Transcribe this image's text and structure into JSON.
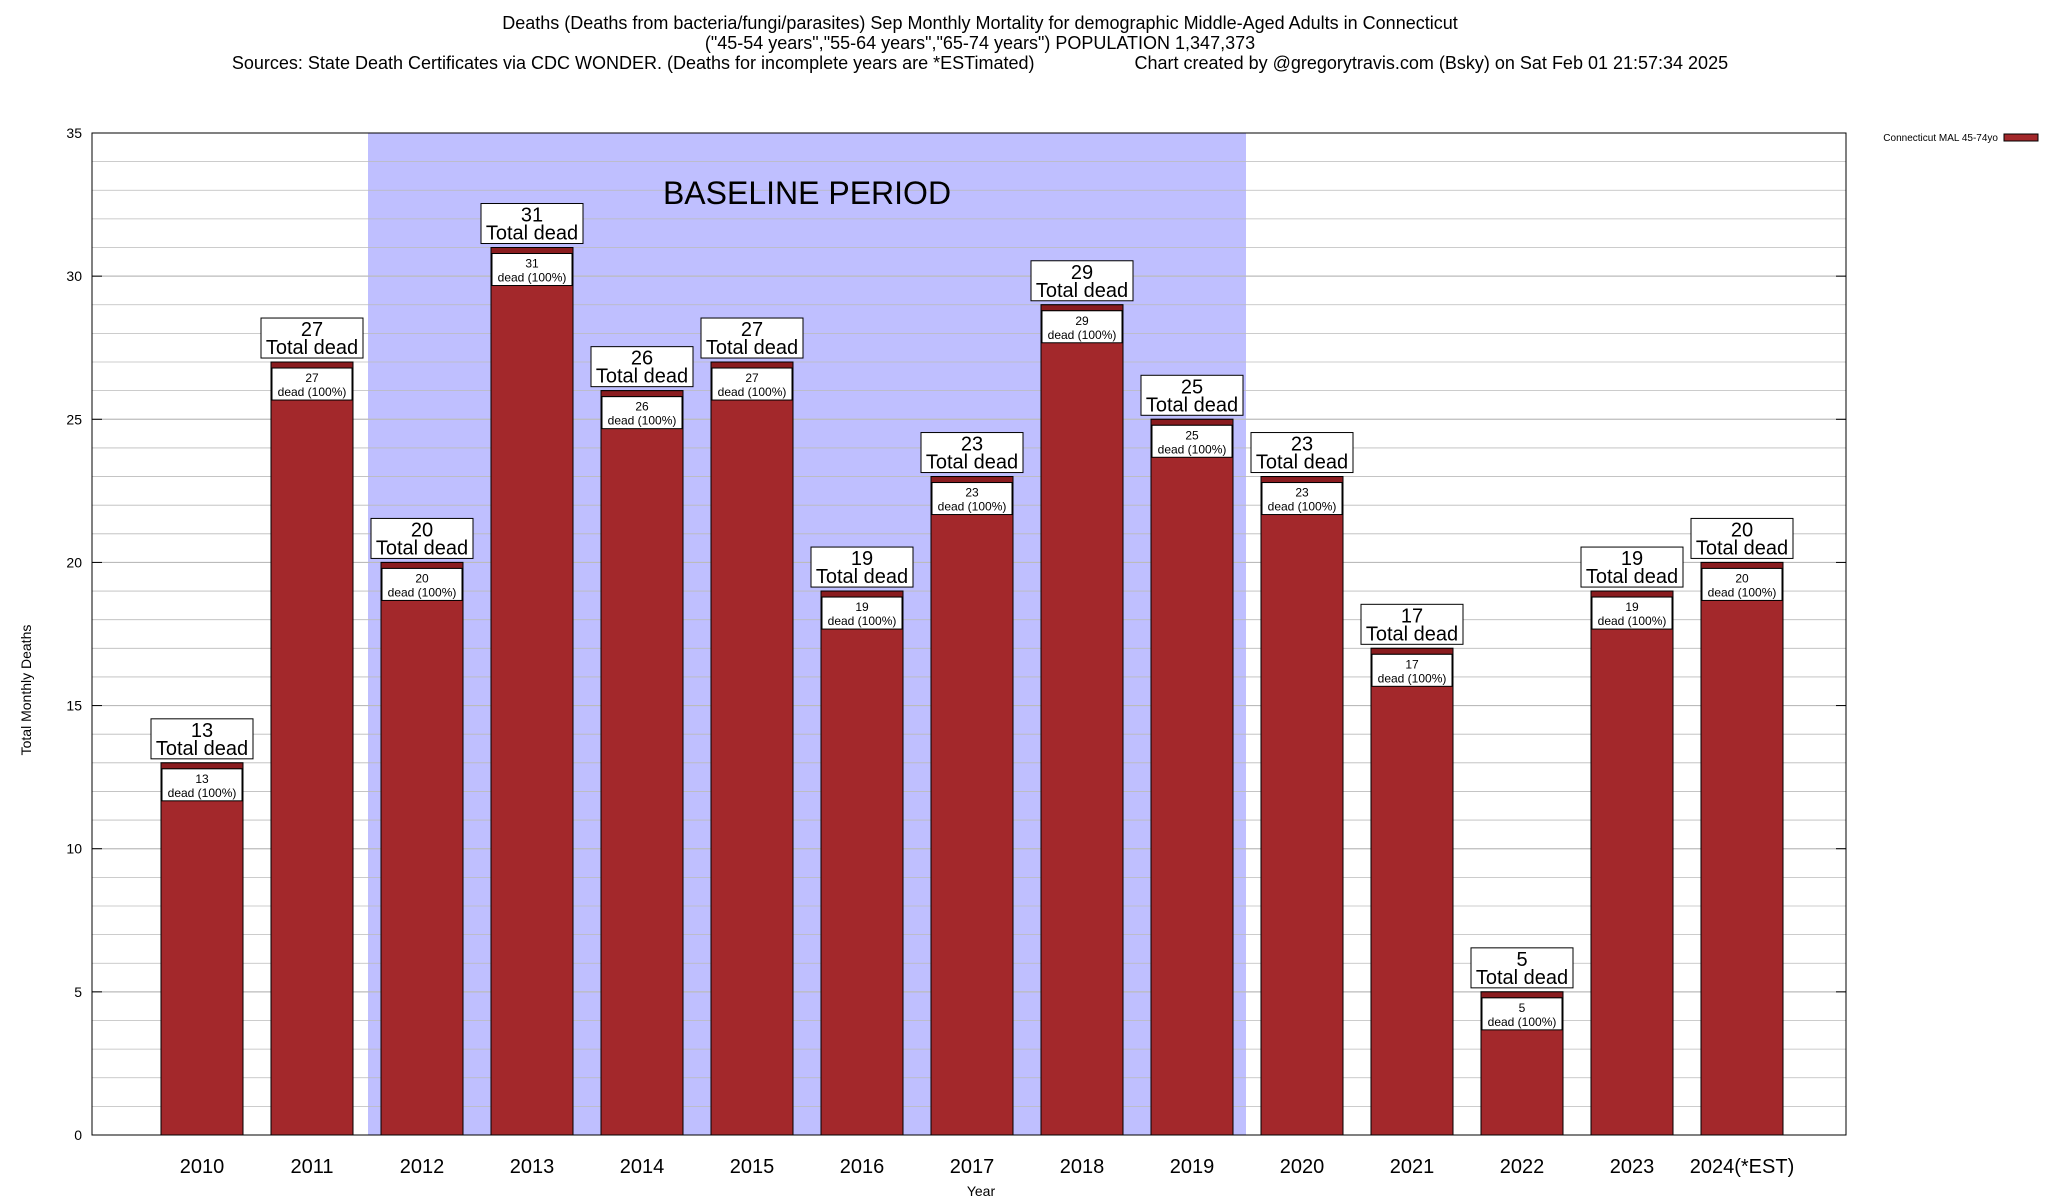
{
  "title_lines": [
    "Deaths (Deaths from bacteria/fungi/parasites) Sep Monthly Mortality for demographic Middle-Aged Adults in Connecticut",
    "(\"45-54 years\",\"55-64 years\",\"65-74 years\") POPULATION 1,347,373",
    "Sources: State Death Certificates via CDC WONDER. (Deaths for incomplete years are *ESTimated)                    Chart created by @gregorytravis.com (Bsky) on Sat Feb 01 21:57:34 2025"
  ],
  "chart_data": {
    "type": "bar",
    "categories": [
      "2010",
      "2011",
      "2012",
      "2013",
      "2014",
      "2015",
      "2016",
      "2017",
      "2018",
      "2019",
      "2020",
      "2021",
      "2022",
      "2023",
      "2024(*EST)"
    ],
    "series": [
      {
        "name": "Connecticut MAL 45-74yo",
        "values": [
          13,
          27,
          20,
          31,
          26,
          27,
          19,
          23,
          29,
          25,
          23,
          17,
          5,
          19,
          20
        ]
      }
    ],
    "data_label_top_suffix": "Total dead",
    "data_label_inner_suffix": "dead (100%)",
    "xlabel": "Year",
    "ylabel": "Total Monthly Deaths",
    "ylim": [
      0,
      35
    ],
    "yticks": [
      0,
      5,
      10,
      15,
      20,
      25,
      30,
      35
    ],
    "grid": true,
    "legend": "top-right",
    "annotation": {
      "label": "BASELINE PERIOD",
      "from_category": "2012",
      "to_category": "2019"
    },
    "colors": {
      "bar": "#a3282b",
      "bar_cap": "#8a1c1f",
      "baseline_band": "#bfbfff",
      "grid": "#bbbbbb"
    }
  }
}
